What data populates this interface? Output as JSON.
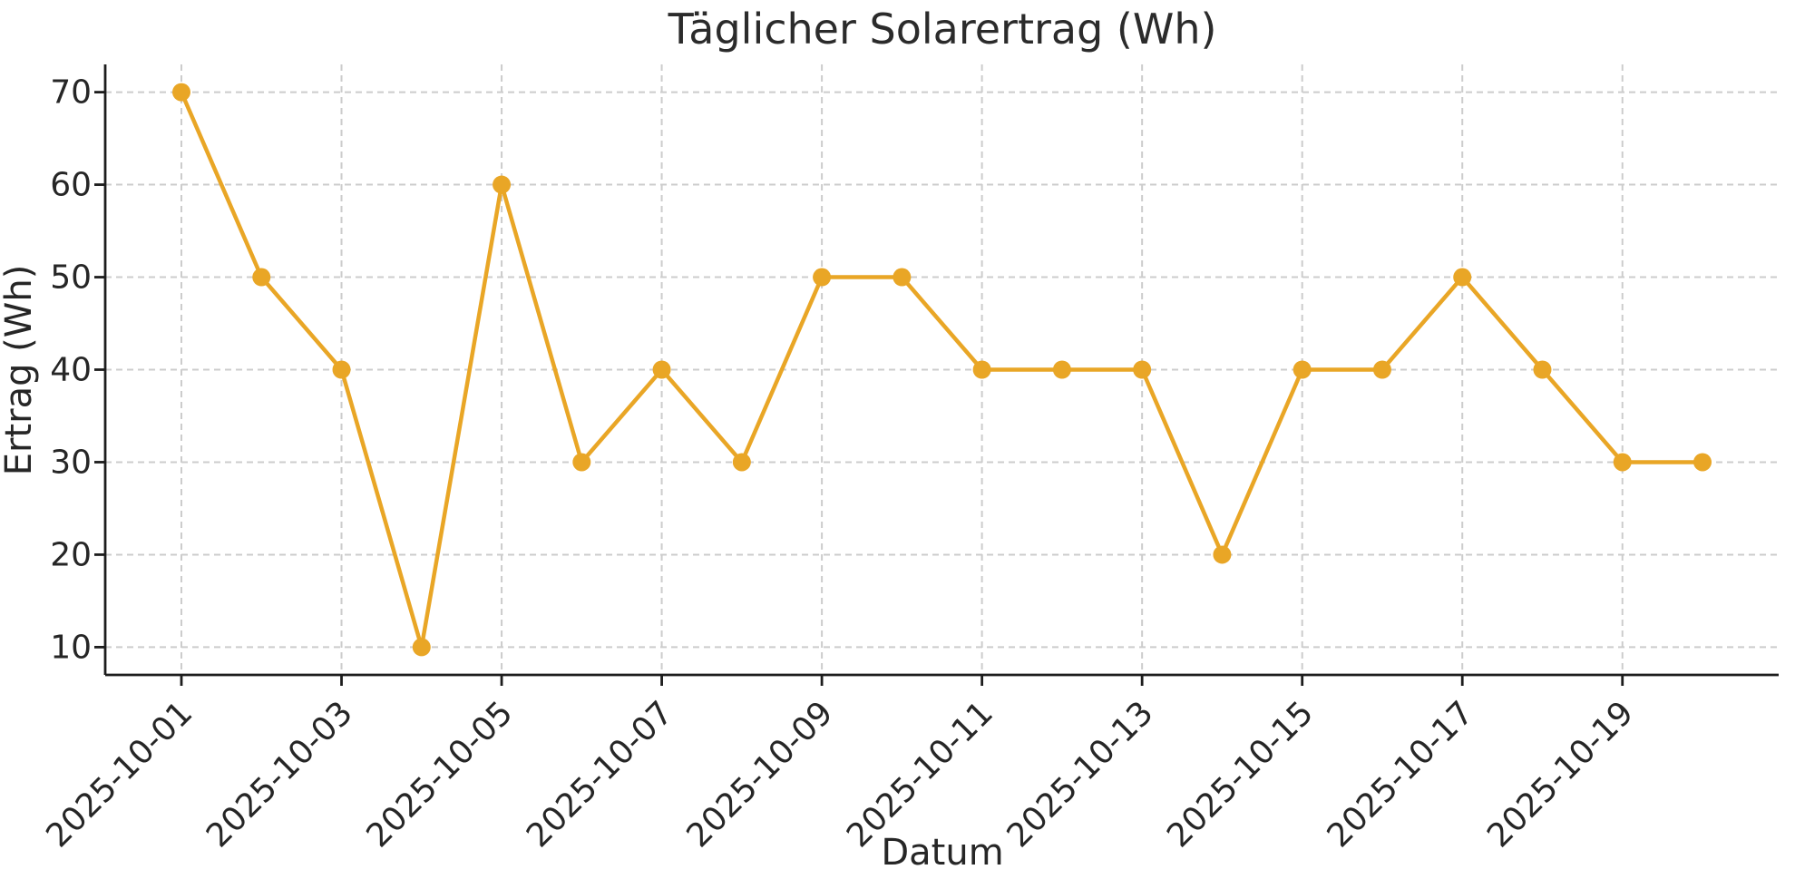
{
  "figure": {
    "title": "Täglicher Solarertrag (Wh)",
    "background_color": "#ffffff"
  },
  "colors": {
    "line": "#e9a626",
    "marker": "#e9a626",
    "grid": "#cccccc",
    "spine": "#1d1d1d",
    "text": "#262626"
  },
  "chart_data": {
    "type": "line",
    "title": "Täglicher Solarertrag (Wh)",
    "xlabel": "Datum",
    "ylabel": "Ertrag (Wh)",
    "x": [
      "2025-10-01",
      "2025-10-02",
      "2025-10-03",
      "2025-10-04",
      "2025-10-05",
      "2025-10-06",
      "2025-10-07",
      "2025-10-08",
      "2025-10-09",
      "2025-10-10",
      "2025-10-11",
      "2025-10-12",
      "2025-10-13",
      "2025-10-14",
      "2025-10-15",
      "2025-10-16",
      "2025-10-17",
      "2025-10-18",
      "2025-10-19",
      "2025-10-20"
    ],
    "values": [
      70,
      50,
      40,
      10,
      60,
      30,
      40,
      30,
      50,
      50,
      40,
      40,
      40,
      20,
      40,
      40,
      50,
      40,
      30,
      30
    ],
    "x_tick_labels": [
      "2025-10-01",
      "2025-10-03",
      "2025-10-05",
      "2025-10-07",
      "2025-10-09",
      "2025-10-11",
      "2025-10-13",
      "2025-10-15",
      "2025-10-17",
      "2025-10-19"
    ],
    "x_tick_indices": [
      0,
      2,
      4,
      6,
      8,
      10,
      12,
      14,
      16,
      18
    ],
    "y_ticks": [
      10,
      20,
      30,
      40,
      50,
      60,
      70
    ],
    "ylim": [
      7,
      73
    ],
    "grid": true,
    "grid_style": "dashed",
    "legend_position": "none",
    "marker": "circle"
  }
}
